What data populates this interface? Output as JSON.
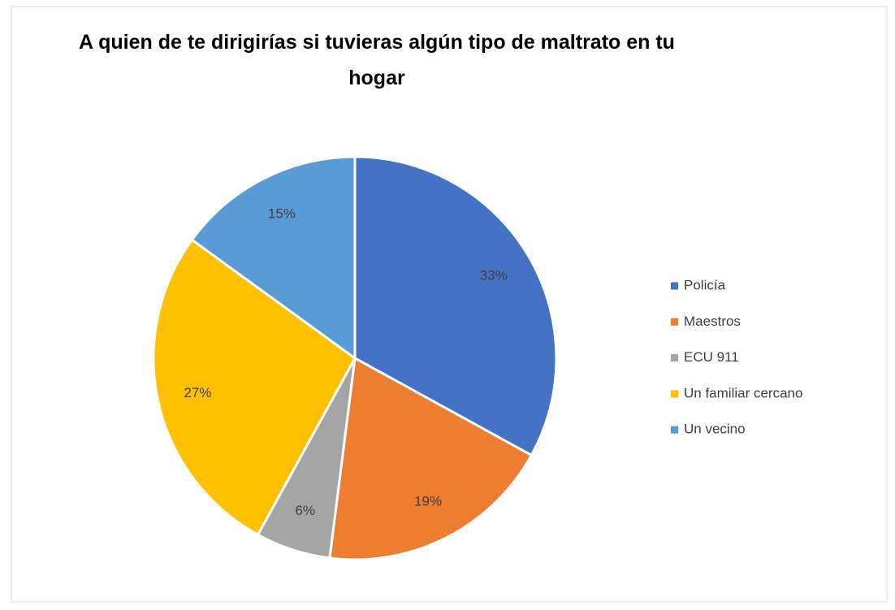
{
  "chart_data": {
    "type": "pie",
    "title": "A quien de te dirigirías si tuvieras algún tipo de maltrato en tu hogar",
    "categories": [
      "Policía",
      "Maestros",
      "ECU 911",
      "Un familiar cercano",
      "Un vecino"
    ],
    "values": [
      33,
      19,
      6,
      27,
      15
    ],
    "value_labels": [
      "33%",
      "19%",
      "6%",
      "27%",
      "15%"
    ],
    "colors": [
      "#4472c4",
      "#ed7d31",
      "#a5a5a5",
      "#ffc000",
      "#5b9bd5"
    ],
    "legend": "right"
  }
}
